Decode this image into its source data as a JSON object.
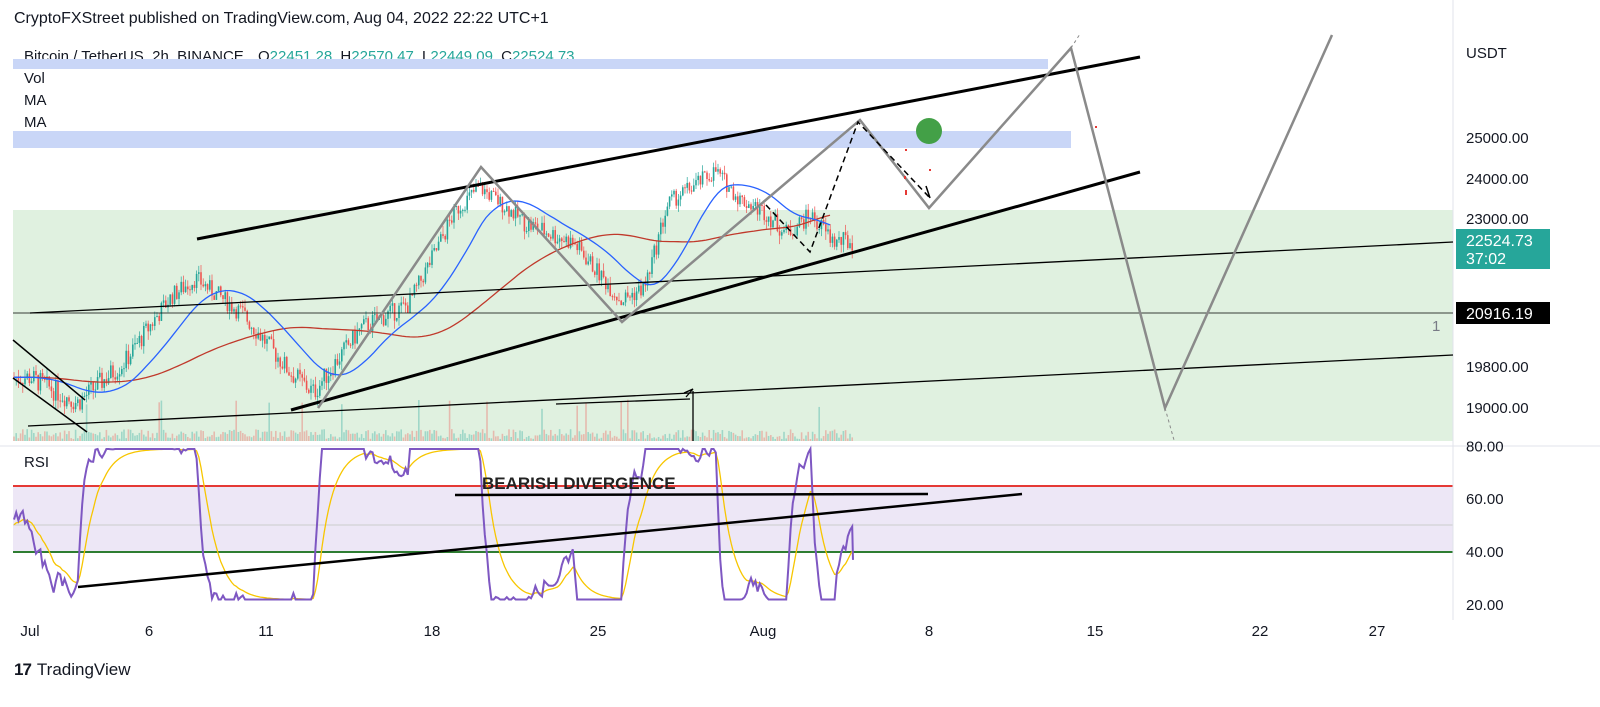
{
  "header": {
    "published": "CryptoFXStreet published on TradingView.com, Aug 04, 2022 22:22 UTC+1"
  },
  "legend": {
    "symbol": "Bitcoin / TetherUS, 2h, BINANCE",
    "open_label": "O",
    "open": "22451.28",
    "high_label": "H",
    "high": "22570.47",
    "low_label": "L",
    "low": "22449.09",
    "close_label": "C",
    "close": "22524.73",
    "indicators": [
      "Vol",
      "MA",
      "MA"
    ]
  },
  "currency": "USDT",
  "rsi_label": "RSI",
  "annotation": "BEARISH DIVERGENCE",
  "marker_number": "1",
  "price_badge": {
    "price": "22524.73",
    "countdown": "37:02",
    "color": "#26a69a"
  },
  "level_badge": {
    "price": "20916.19"
  },
  "footer": {
    "brand": "TradingView",
    "logo": "17"
  },
  "colors": {
    "bull": "#26a69a",
    "bear": "#ef5350",
    "rsi": "#7e57c2",
    "ma_fast": "#2962ff",
    "ma_slow": "#c0392b",
    "zone": "#d6ecd6",
    "band": "#c9d6f7"
  },
  "chart_data": {
    "type": "line",
    "title": "Bitcoin / TetherUS, 2h, BINANCE",
    "price_axis": {
      "unit": "USDT",
      "ticks": [
        19000,
        19800,
        23000,
        24000,
        25000
      ]
    },
    "rsi_axis": {
      "ticks": [
        20,
        40,
        60,
        80
      ],
      "upper_band": 65,
      "lower_band": 40
    },
    "x_ticks": [
      "Jul",
      "6",
      "11",
      "18",
      "25",
      "Aug",
      "8",
      "15",
      "22",
      "27"
    ],
    "series": [
      {
        "name": "BTCUSDT close (approx.)",
        "points": [
          [
            "Jul 1",
            19600
          ],
          [
            "Jul 3",
            19100
          ],
          [
            "Jul 5",
            19900
          ],
          [
            "Jul 7",
            21300
          ],
          [
            "Jul 8",
            21700
          ],
          [
            "Jul 10",
            20900
          ],
          [
            "Jul 12",
            19700
          ],
          [
            "Jul 13",
            19300
          ],
          [
            "Jul 15",
            20600
          ],
          [
            "Jul 17",
            21100
          ],
          [
            "Jul 19",
            23200
          ],
          [
            "Jul 20",
            23800
          ],
          [
            "Jul 22",
            22900
          ],
          [
            "Jul 24",
            22500
          ],
          [
            "Jul 26",
            21200
          ],
          [
            "Jul 27",
            21500
          ],
          [
            "Jul 28",
            23400
          ],
          [
            "Jul 30",
            24200
          ],
          [
            "Jul 31",
            23500
          ],
          [
            "Aug 1",
            23200
          ],
          [
            "Aug 2",
            22700
          ],
          [
            "Aug 3",
            23100
          ],
          [
            "Aug 4",
            22524.73
          ]
        ]
      }
    ],
    "levels": [
      20916.19
    ],
    "rsi": {
      "last": 37
    }
  }
}
